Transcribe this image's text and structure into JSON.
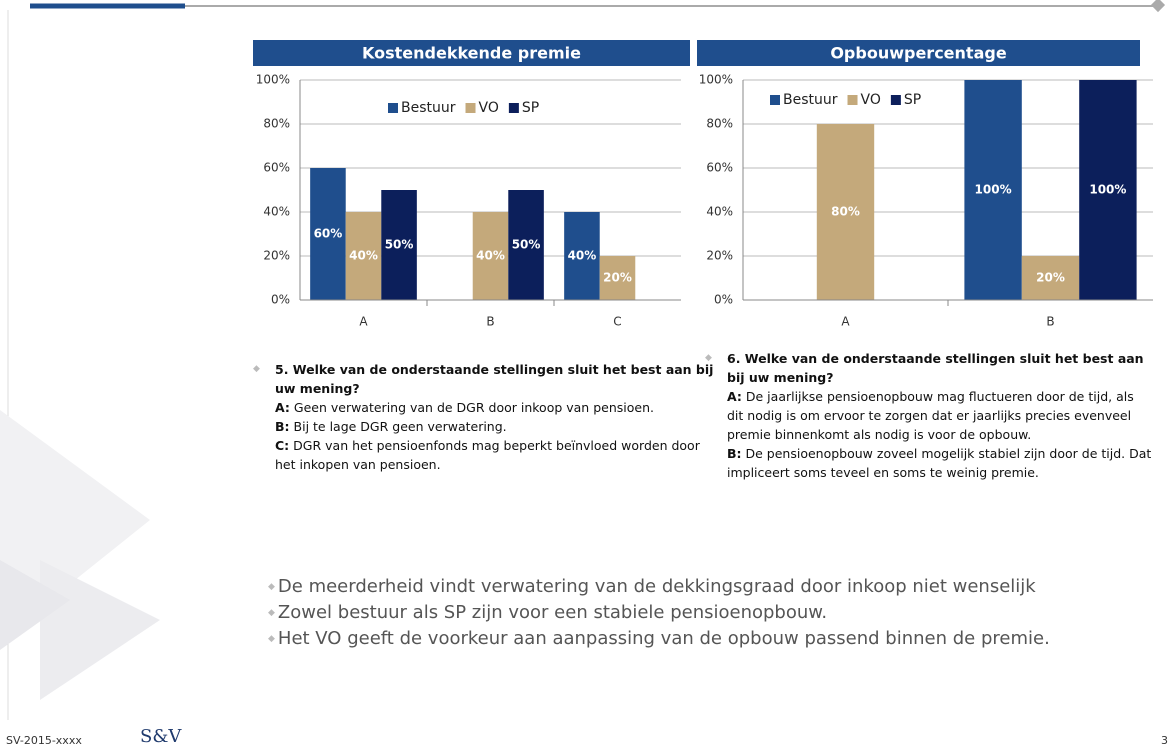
{
  "chart_data": [
    {
      "type": "bar",
      "title": "Kostendekkende premie",
      "categories": [
        "A",
        "B",
        "C"
      ],
      "series": [
        {
          "name": "Bestuur",
          "color": "#1f4e8d",
          "values": [
            60,
            null,
            40
          ],
          "value_labels": [
            "60%",
            null,
            "40%"
          ]
        },
        {
          "name": "VO",
          "color": "#c4a97b",
          "values": [
            40,
            40,
            20
          ],
          "value_labels": [
            "40%",
            "40%",
            "20%"
          ]
        },
        {
          "name": "SP",
          "color": "#0c1f5b",
          "values": [
            50,
            50,
            null
          ],
          "value_labels": [
            "50%",
            "50%",
            null
          ]
        }
      ],
      "ylim": [
        0,
        100
      ],
      "yticks": [
        {
          "value": 0,
          "label": "0%"
        },
        {
          "value": 20,
          "label": "20%"
        },
        {
          "value": 40,
          "label": "40%"
        },
        {
          "value": 60,
          "label": "60%"
        },
        {
          "value": 80,
          "label": "80%"
        },
        {
          "value": 100,
          "label": "100%"
        }
      ],
      "grid": true,
      "legend": "upper center"
    },
    {
      "type": "bar",
      "title": "Opbouwpercentage",
      "categories": [
        "A",
        "B"
      ],
      "series": [
        {
          "name": "Bestuur",
          "color": "#1f4e8d",
          "values": [
            null,
            100
          ],
          "value_labels": [
            null,
            "100%"
          ]
        },
        {
          "name": "VO",
          "color": "#c4a97b",
          "values": [
            80,
            20
          ],
          "value_labels": [
            "80%",
            "20%"
          ]
        },
        {
          "name": "SP",
          "color": "#0c1f5b",
          "values": [
            null,
            100
          ],
          "value_labels": [
            null,
            "100%"
          ]
        }
      ],
      "ylim": [
        0,
        100
      ],
      "yticks": [
        {
          "value": 0,
          "label": "0%"
        },
        {
          "value": 20,
          "label": "20%"
        },
        {
          "value": 40,
          "label": "40%"
        },
        {
          "value": 60,
          "label": "60%"
        },
        {
          "value": 80,
          "label": "80%"
        },
        {
          "value": 100,
          "label": "100%"
        }
      ],
      "grid": true,
      "legend": "upper left"
    }
  ],
  "questions": [
    {
      "title": "5. Welke van de onderstaande stellingen sluit het best aan bij uw mening?",
      "options": [
        {
          "label": "A:",
          "text": "Geen verwatering van de DGR door inkoop van pensioen."
        },
        {
          "label": "B:",
          "text": "Bij te lage DGR geen verwatering."
        },
        {
          "label": "C:",
          "text": "DGR van het pensioenfonds mag beperkt beïnvloed worden door het inkopen van pensioen."
        }
      ]
    },
    {
      "title": "6. Welke van de onderstaande stellingen sluit het best aan bij uw mening?",
      "options": [
        {
          "label": "A:",
          "text": "De jaarlijkse pensioenopbouw mag fluctueren door de tijd, als dit nodig is om ervoor te zorgen dat er jaarlijks precies evenveel premie binnenkomt als nodig is voor de opbouw."
        },
        {
          "label": "B:",
          "text": "De pensioenopbouw zoveel mogelijk stabiel zijn door de tijd. Dat impliceert soms teveel en soms te weinig premie."
        }
      ]
    }
  ],
  "bullets": [
    "De meerderheid vindt verwatering van de dekkingsgraad door inkoop niet wenselijk",
    "Zowel bestuur als SP zijn voor een stabiele pensioenopbouw.",
    "Het VO geeft de voorkeur aan aanpassing van de opbouw passend binnen de premie."
  ],
  "footer": {
    "code": "SV-2015-xxxx",
    "logo": "S&V",
    "page": "3"
  }
}
